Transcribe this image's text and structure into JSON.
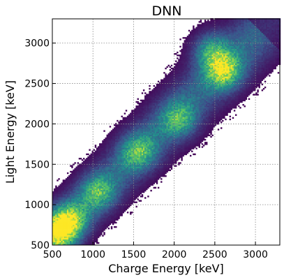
{
  "chart_data": {
    "type": "heatmap",
    "title": "DNN",
    "xlabel": "Charge Energy [keV]",
    "ylabel": "Light Energy [keV]",
    "xlim": [
      500,
      3300
    ],
    "ylim": [
      500,
      3300
    ],
    "xticks": [
      500,
      1000,
      1500,
      2000,
      2500,
      3000
    ],
    "yticks": [
      500,
      1000,
      1500,
      2000,
      2500,
      3000
    ],
    "xtick_labels": [
      "500",
      "1000",
      "1500",
      "2000",
      "2500",
      "3000"
    ],
    "ytick_labels": [
      "500",
      "1000",
      "1500",
      "2000",
      "2500",
      "3000"
    ],
    "grid": true,
    "colormap": "viridis",
    "colors": {
      "low": "#440154",
      "mid_low": "#3b528b",
      "mid": "#21918c",
      "mid_high": "#5ec962",
      "high": "#fde725",
      "grid": "#888888"
    },
    "band": {
      "description_free": true,
      "slope": 1.0,
      "clusters": [
        {
          "x": 560,
          "y": 650,
          "intensity": 1.0
        },
        {
          "x": 700,
          "y": 800,
          "intensity": 0.75
        },
        {
          "x": 1050,
          "y": 1150,
          "intensity": 0.55
        },
        {
          "x": 1550,
          "y": 1650,
          "intensity": 0.6
        },
        {
          "x": 2050,
          "y": 2050,
          "intensity": 0.55
        },
        {
          "x": 2600,
          "y": 2650,
          "intensity": 0.85
        },
        {
          "x": 2450,
          "y": 2900,
          "intensity": 0.6
        }
      ]
    }
  }
}
